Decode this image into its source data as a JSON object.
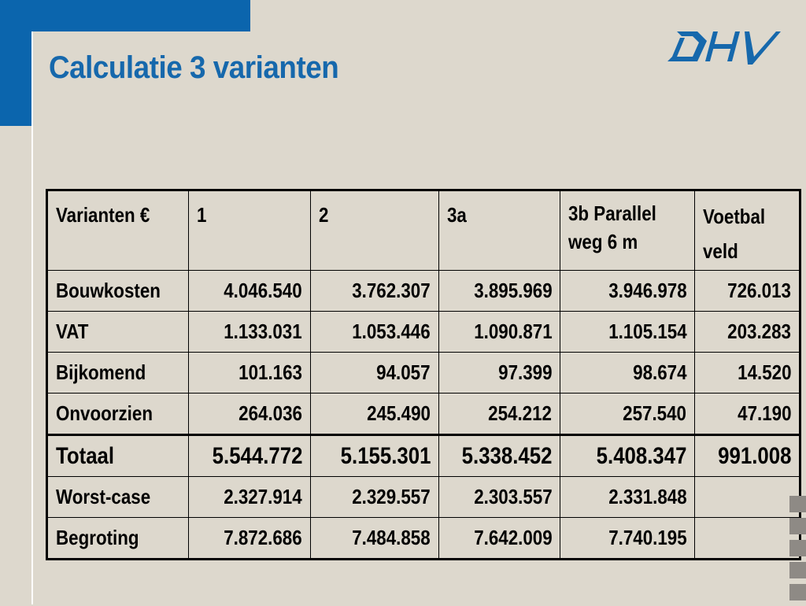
{
  "slide": {
    "title": "Calculatie 3 varianten",
    "logo_text": "DHV",
    "accent_color": "#0b65ad"
  },
  "table": {
    "headers": [
      "Varianten €",
      "1",
      "2",
      "3a",
      "3b Parallel weg 6 m",
      "Voetbal veld"
    ],
    "rows": [
      {
        "label": "Bouwkosten",
        "values": [
          "4.046.540",
          "3.762.307",
          "3.895.969",
          "3.946.978",
          "726.013"
        ]
      },
      {
        "label": "VAT",
        "values": [
          "1.133.031",
          "1.053.446",
          "1.090.871",
          "1.105.154",
          "203.283"
        ]
      },
      {
        "label": "Bijkomend",
        "values": [
          "101.163",
          "94.057",
          "97.399",
          "98.674",
          "14.520"
        ]
      },
      {
        "label": "Onvoorzien",
        "values": [
          "264.036",
          "245.490",
          "254.212",
          "257.540",
          "47.190"
        ]
      },
      {
        "label": "Totaal",
        "values": [
          "5.544.772",
          "5.155.301",
          "5.338.452",
          "5.408.347",
          "991.008"
        ]
      },
      {
        "label": "Worst-case",
        "values": [
          "2.327.914",
          "2.329.557",
          "2.303.557",
          "2.331.848",
          ""
        ]
      },
      {
        "label": "Begroting",
        "values": [
          "7.872.686",
          "7.484.858",
          "7.642.009",
          "7.740.195",
          ""
        ]
      }
    ]
  }
}
